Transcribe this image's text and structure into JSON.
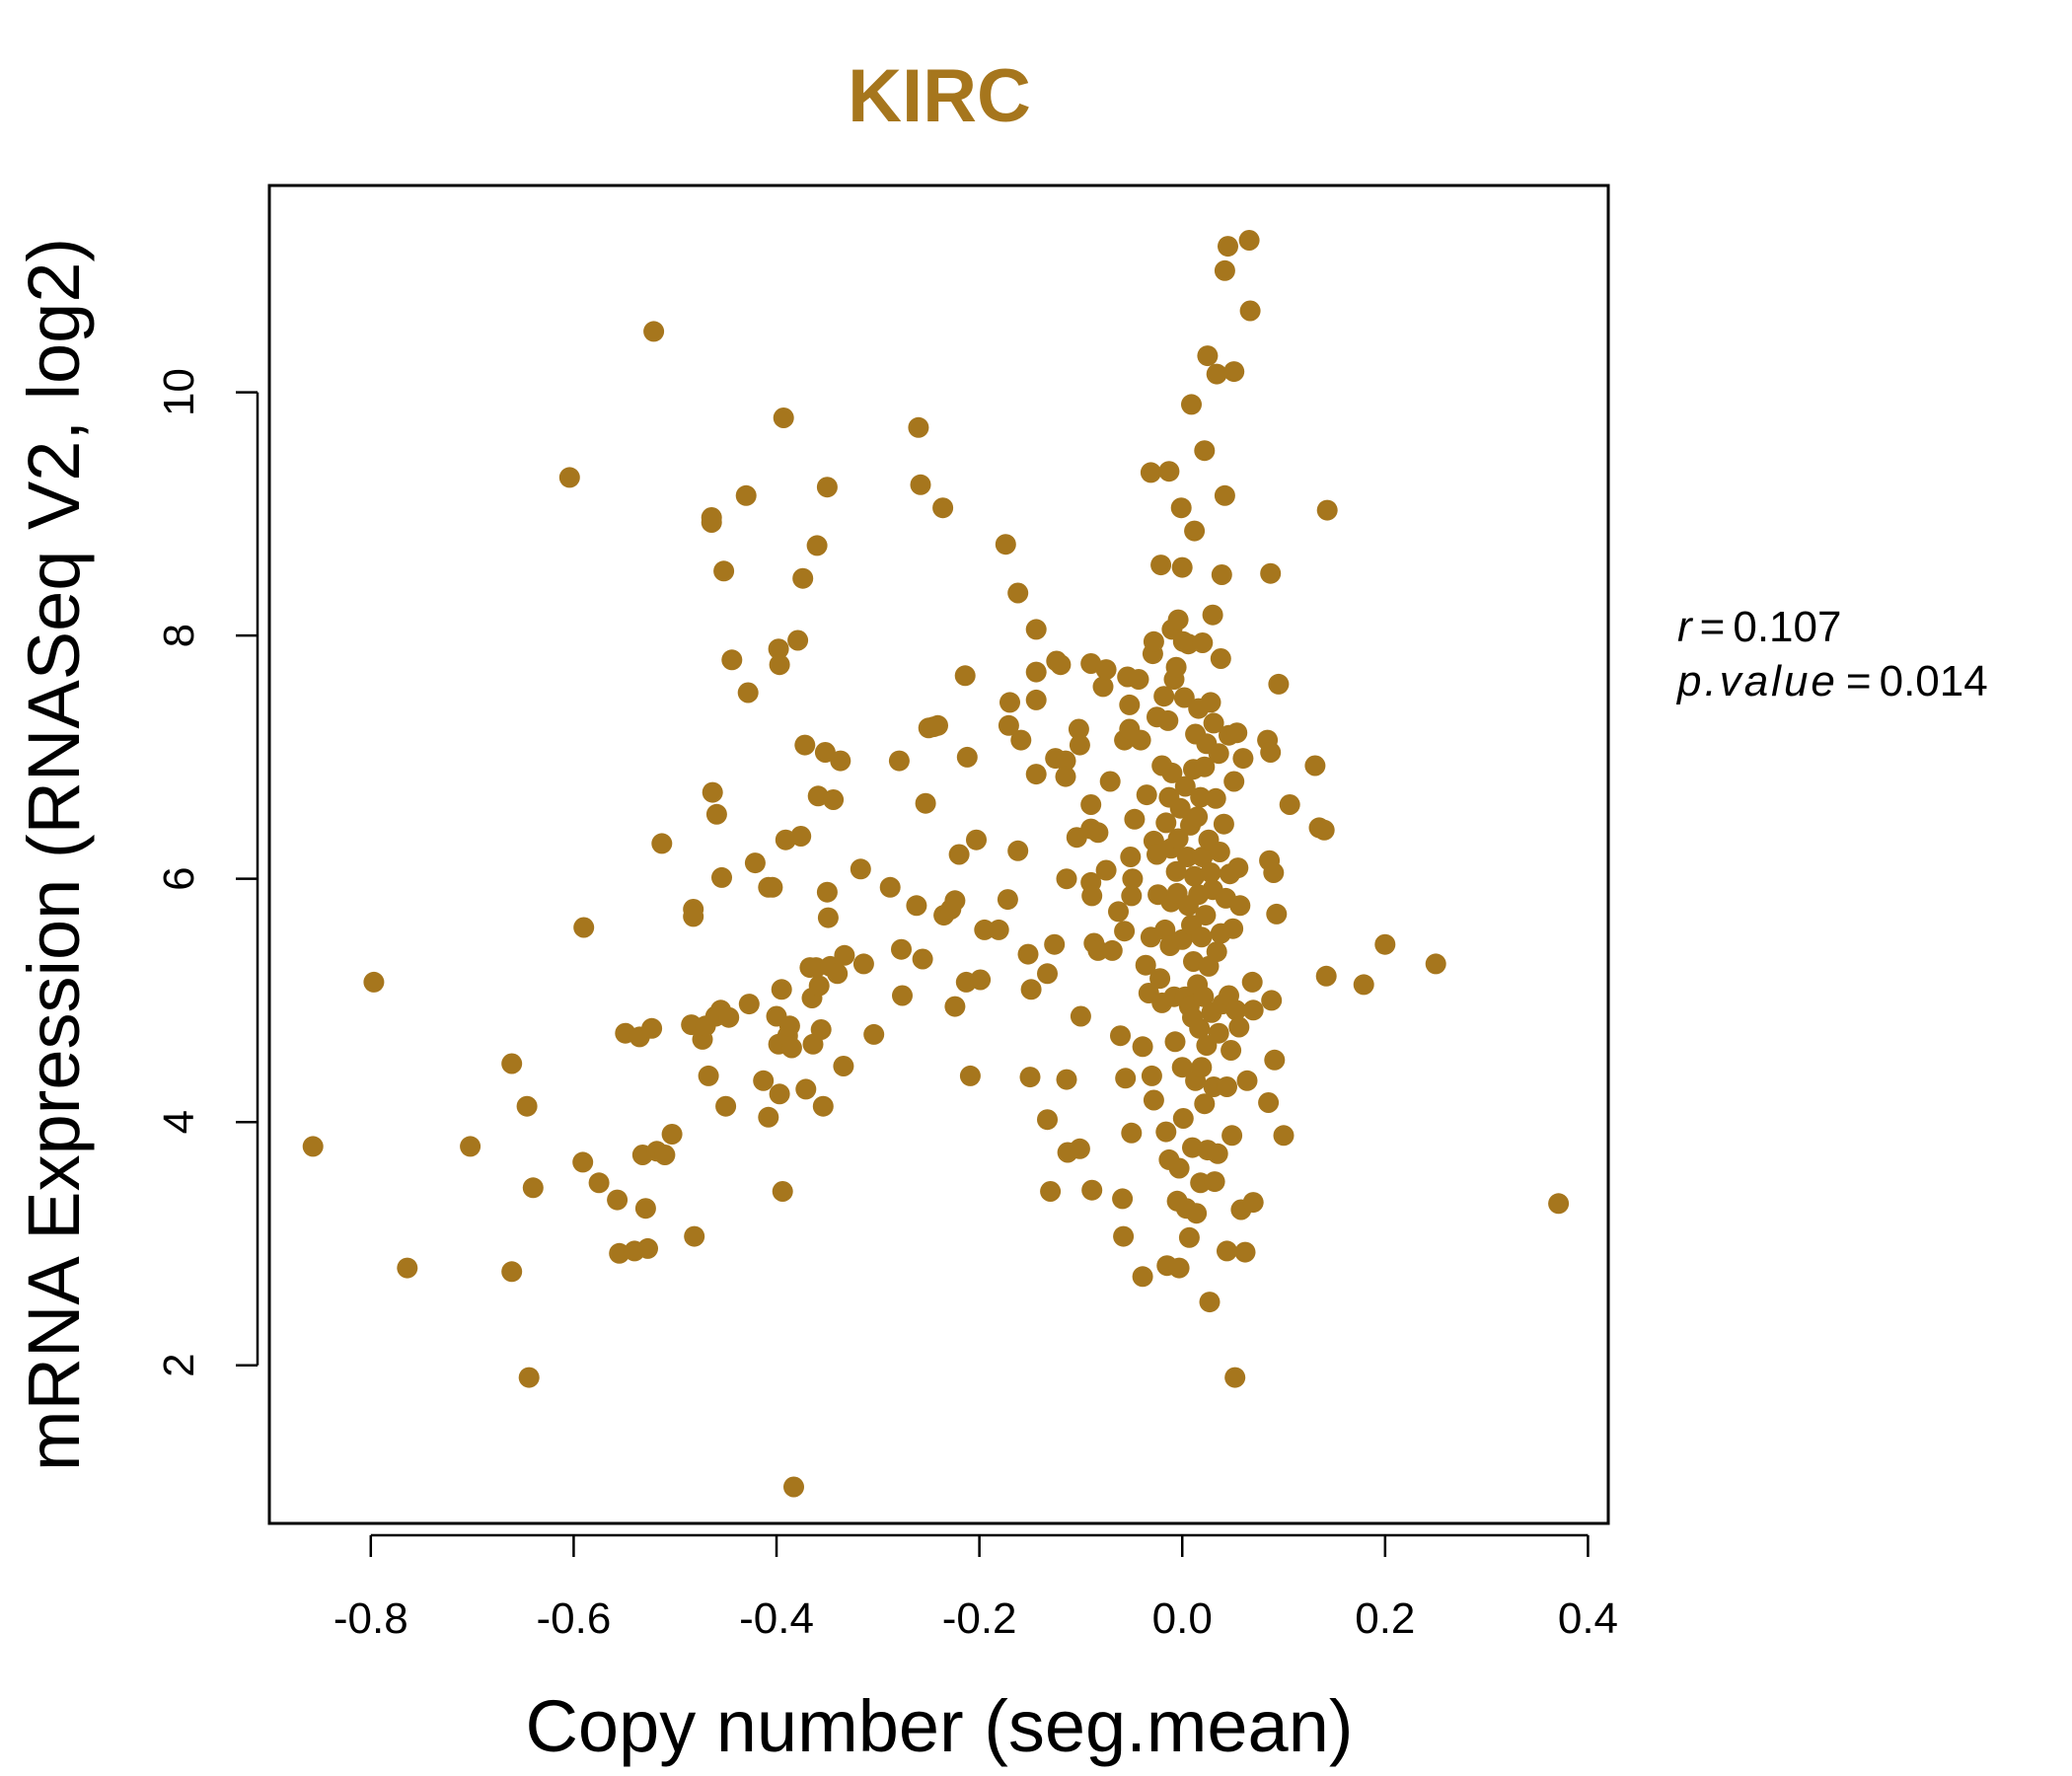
{
  "chart_data": {
    "type": "scatter",
    "title": "KIRC",
    "xlabel": "Copy number (seg.mean)",
    "ylabel": "mRNA Expression (RNASeq V2, log2)",
    "xlim": [
      -0.9,
      0.42
    ],
    "ylim": [
      0.7,
      11.7
    ],
    "x_ticks": [
      -0.8,
      -0.6,
      -0.4,
      -0.2,
      0.0,
      0.2,
      0.4
    ],
    "x_tick_labels": [
      "-0.8",
      "-0.6",
      "-0.4",
      "-0.2",
      "0.0",
      "0.2",
      "0.4"
    ],
    "y_ticks": [
      2,
      4,
      6,
      8,
      10
    ],
    "y_tick_labels": [
      "2",
      "4",
      "6",
      "8",
      "10"
    ],
    "grid": false,
    "legend": "none",
    "stats": {
      "r_label": "r",
      "r_value": "0.107",
      "p_label": "p.value",
      "p_value": "0.014",
      "equals": "="
    },
    "colors": {
      "point": "#A6761D",
      "title": "#A6761D",
      "axis": "#000000"
    },
    "points": [
      [
        -0.857,
        3.8
      ],
      [
        -0.797,
        5.15
      ],
      [
        -0.764,
        2.8
      ],
      [
        -0.702,
        3.8
      ],
      [
        -0.661,
        4.48
      ],
      [
        -0.661,
        2.77
      ],
      [
        -0.646,
        4.13
      ],
      [
        -0.644,
        1.9
      ],
      [
        -0.64,
        3.46
      ],
      [
        -0.604,
        9.3
      ],
      [
        -0.59,
        5.6
      ],
      [
        -0.591,
        3.67
      ],
      [
        -0.575,
        3.5
      ],
      [
        -0.557,
        3.36
      ],
      [
        -0.555,
        2.92
      ],
      [
        -0.549,
        4.73
      ],
      [
        -0.54,
        2.94
      ],
      [
        -0.535,
        4.7
      ],
      [
        -0.532,
        3.73
      ],
      [
        -0.529,
        3.29
      ],
      [
        -0.527,
        2.96
      ],
      [
        -0.523,
        4.77
      ],
      [
        -0.521,
        10.5
      ],
      [
        -0.518,
        3.76
      ],
      [
        -0.513,
        6.29
      ],
      [
        -0.51,
        3.73
      ],
      [
        -0.503,
        3.9
      ],
      [
        -0.484,
        4.8
      ],
      [
        -0.482,
        5.75
      ],
      [
        -0.482,
        5.69
      ],
      [
        -0.481,
        3.06
      ],
      [
        -0.473,
        4.68
      ],
      [
        -0.47,
        4.79
      ],
      [
        -0.467,
        4.38
      ],
      [
        -0.464,
        8.97
      ],
      [
        -0.464,
        8.93
      ],
      [
        -0.463,
        6.71
      ],
      [
        -0.46,
        4.87
      ],
      [
        -0.459,
        6.53
      ],
      [
        -0.455,
        4.92
      ],
      [
        -0.454,
        6.01
      ],
      [
        -0.452,
        8.53
      ],
      [
        -0.45,
        4.13
      ],
      [
        -0.447,
        4.86
      ],
      [
        -0.444,
        7.8
      ],
      [
        -0.43,
        9.15
      ],
      [
        -0.428,
        7.53
      ],
      [
        -0.427,
        4.97
      ],
      [
        -0.421,
        6.13
      ],
      [
        -0.413,
        4.34
      ],
      [
        -0.408,
        5.93
      ],
      [
        -0.408,
        4.04
      ],
      [
        -0.404,
        5.93
      ],
      [
        -0.4,
        4.87
      ],
      [
        -0.398,
        7.89
      ],
      [
        -0.397,
        7.76
      ],
      [
        -0.398,
        4.64
      ],
      [
        -0.397,
        4.23
      ],
      [
        -0.395,
        5.09
      ],
      [
        -0.394,
        3.43
      ],
      [
        -0.393,
        9.79
      ],
      [
        -0.391,
        6.32
      ],
      [
        -0.389,
        4.71
      ],
      [
        -0.387,
        4.79
      ],
      [
        -0.385,
        4.61
      ],
      [
        -0.383,
        1.0
      ],
      [
        -0.379,
        7.96
      ],
      [
        -0.376,
        6.35
      ],
      [
        -0.374,
        8.47
      ],
      [
        -0.372,
        7.1
      ],
      [
        -0.371,
        4.27
      ],
      [
        -0.367,
        5.27
      ],
      [
        -0.365,
        5.02
      ],
      [
        -0.364,
        4.64
      ],
      [
        -0.361,
        5.27
      ],
      [
        -0.36,
        8.74
      ],
      [
        -0.359,
        6.68
      ],
      [
        -0.358,
        5.12
      ],
      [
        -0.356,
        4.76
      ],
      [
        -0.354,
        4.13
      ],
      [
        -0.352,
        7.04
      ],
      [
        -0.35,
        9.22
      ],
      [
        -0.35,
        5.89
      ],
      [
        -0.349,
        5.68
      ],
      [
        -0.347,
        5.28
      ],
      [
        -0.344,
        6.65
      ],
      [
        -0.34,
        5.22
      ],
      [
        -0.337,
        6.97
      ],
      [
        -0.334,
        4.46
      ],
      [
        -0.333,
        5.37
      ],
      [
        -0.317,
        6.08
      ],
      [
        -0.314,
        5.3
      ],
      [
        -0.304,
        4.72
      ],
      [
        -0.288,
        5.93
      ],
      [
        -0.279,
        6.97
      ],
      [
        -0.277,
        5.42
      ],
      [
        -0.276,
        5.04
      ],
      [
        -0.262,
        5.78
      ],
      [
        -0.26,
        9.71
      ],
      [
        -0.258,
        9.24
      ],
      [
        -0.256,
        5.34
      ],
      [
        -0.253,
        6.62
      ],
      [
        -0.25,
        7.24
      ],
      [
        -0.245,
        7.25
      ],
      [
        -0.241,
        7.26
      ],
      [
        -0.236,
        9.05
      ],
      [
        -0.235,
        5.7
      ],
      [
        -0.228,
        5.75
      ],
      [
        -0.224,
        5.82
      ],
      [
        -0.224,
        4.95
      ],
      [
        -0.22,
        6.2
      ],
      [
        -0.214,
        7.67
      ],
      [
        -0.212,
        7.0
      ],
      [
        -0.213,
        5.15
      ],
      [
        -0.209,
        4.38
      ],
      [
        -0.203,
        6.32
      ],
      [
        -0.199,
        5.17
      ],
      [
        -0.195,
        5.58
      ],
      [
        -0.181,
        5.58
      ],
      [
        -0.174,
        8.75
      ],
      [
        -0.171,
        7.26
      ],
      [
        -0.17,
        7.45
      ],
      [
        -0.172,
        5.83
      ],
      [
        -0.162,
        8.35
      ],
      [
        -0.162,
        6.23
      ],
      [
        -0.159,
        7.14
      ],
      [
        -0.152,
        5.38
      ],
      [
        -0.15,
        4.37
      ],
      [
        -0.149,
        5.09
      ],
      [
        -0.144,
        8.05
      ],
      [
        -0.144,
        7.7
      ],
      [
        -0.144,
        7.47
      ],
      [
        -0.144,
        6.86
      ],
      [
        -0.133,
        5.22
      ],
      [
        -0.133,
        4.02
      ],
      [
        -0.13,
        3.43
      ],
      [
        -0.126,
        5.46
      ],
      [
        -0.125,
        6.99
      ],
      [
        -0.124,
        7.79
      ],
      [
        -0.12,
        7.76
      ],
      [
        -0.115,
        6.97
      ],
      [
        -0.115,
        6.84
      ],
      [
        -0.113,
        3.75
      ],
      [
        -0.114,
        4.35
      ],
      [
        -0.114,
        6.0
      ],
      [
        -0.104,
        6.34
      ],
      [
        -0.102,
        7.23
      ],
      [
        -0.101,
        7.1
      ],
      [
        -0.101,
        3.78
      ],
      [
        -0.1,
        4.87
      ],
      [
        -0.09,
        7.77
      ],
      [
        -0.09,
        6.61
      ],
      [
        -0.09,
        6.41
      ],
      [
        -0.09,
        5.97
      ],
      [
        -0.089,
        5.86
      ],
      [
        -0.089,
        3.44
      ],
      [
        -0.087,
        5.47
      ],
      [
        -0.083,
        6.38
      ],
      [
        -0.083,
        5.41
      ],
      [
        -0.078,
        7.58
      ],
      [
        -0.075,
        7.72
      ],
      [
        -0.075,
        6.07
      ],
      [
        -0.071,
        6.8
      ],
      [
        -0.069,
        5.41
      ],
      [
        -0.063,
        5.73
      ],
      [
        -0.061,
        4.71
      ],
      [
        -0.059,
        3.37
      ],
      [
        -0.058,
        3.06
      ],
      [
        -0.057,
        7.14
      ],
      [
        -0.057,
        5.57
      ],
      [
        -0.056,
        4.36
      ],
      [
        -0.054,
        7.66
      ],
      [
        -0.052,
        7.43
      ],
      [
        -0.052,
        7.23
      ],
      [
        -0.051,
        6.18
      ],
      [
        -0.05,
        5.86
      ],
      [
        -0.05,
        3.91
      ],
      [
        -0.049,
        6.0
      ],
      [
        -0.047,
        6.49
      ],
      [
        -0.043,
        7.64
      ],
      [
        -0.041,
        7.14
      ],
      [
        -0.039,
        4.62
      ],
      [
        -0.039,
        2.73
      ],
      [
        -0.036,
        5.29
      ],
      [
        -0.035,
        6.69
      ],
      [
        -0.033,
        5.06
      ],
      [
        -0.031,
        9.34
      ],
      [
        -0.031,
        5.52
      ],
      [
        -0.03,
        4.38
      ],
      [
        -0.029,
        7.85
      ],
      [
        -0.028,
        7.95
      ],
      [
        -0.028,
        6.31
      ],
      [
        -0.028,
        4.18
      ],
      [
        -0.025,
        7.33
      ],
      [
        -0.025,
        6.2
      ],
      [
        -0.024,
        5.87
      ],
      [
        -0.022,
        5.18
      ],
      [
        -0.021,
        8.58
      ],
      [
        -0.02,
        6.93
      ],
      [
        -0.02,
        4.98
      ],
      [
        -0.018,
        7.5
      ],
      [
        -0.017,
        5.58
      ],
      [
        -0.016,
        6.46
      ],
      [
        -0.016,
        3.92
      ],
      [
        -0.015,
        2.82
      ],
      [
        -0.014,
        7.3
      ],
      [
        -0.013,
        9.35
      ],
      [
        -0.013,
        6.67
      ],
      [
        -0.013,
        3.69
      ],
      [
        -0.012,
        5.45
      ],
      [
        -0.011,
        6.25
      ],
      [
        -0.011,
        5.81
      ],
      [
        -0.01,
        8.05
      ],
      [
        -0.01,
        6.87
      ],
      [
        -0.008,
        7.64
      ],
      [
        -0.008,
        5.03
      ],
      [
        -0.007,
        4.66
      ],
      [
        -0.006,
        7.74
      ],
      [
        -0.006,
        6.06
      ],
      [
        -0.005,
        5.88
      ],
      [
        -0.005,
        3.35
      ],
      [
        -0.004,
        8.13
      ],
      [
        -0.004,
        6.33
      ],
      [
        -0.003,
        3.62
      ],
      [
        -0.003,
        2.8
      ],
      [
        -0.002,
        6.58
      ],
      [
        -0.001,
        9.05
      ],
      [
        0.0,
        8.56
      ],
      [
        0.0,
        5.5
      ],
      [
        0.0,
        4.45
      ],
      [
        0.001,
        7.95
      ],
      [
        0.001,
        4.03
      ],
      [
        0.002,
        7.49
      ],
      [
        0.003,
        6.76
      ],
      [
        0.003,
        5.03
      ],
      [
        0.004,
        3.29
      ],
      [
        0.005,
        6.18
      ],
      [
        0.006,
        7.93
      ],
      [
        0.006,
        5.78
      ],
      [
        0.007,
        3.05
      ],
      [
        0.007,
        4.95
      ],
      [
        0.008,
        6.44
      ],
      [
        0.009,
        9.9
      ],
      [
        0.009,
        5.62
      ],
      [
        0.01,
        4.86
      ],
      [
        0.01,
        3.79
      ],
      [
        0.011,
        6.9
      ],
      [
        0.011,
        5.32
      ],
      [
        0.012,
        8.86
      ],
      [
        0.012,
        6.02
      ],
      [
        0.013,
        7.19
      ],
      [
        0.013,
        4.34
      ],
      [
        0.014,
        3.25
      ],
      [
        0.015,
        6.51
      ],
      [
        0.015,
        5.13
      ],
      [
        0.016,
        7.4
      ],
      [
        0.016,
        5.87
      ],
      [
        0.017,
        4.77
      ],
      [
        0.018,
        6.67
      ],
      [
        0.018,
        3.5
      ],
      [
        0.019,
        5.52
      ],
      [
        0.019,
        4.45
      ],
      [
        0.02,
        7.94
      ],
      [
        0.02,
        6.18
      ],
      [
        0.021,
        5.03
      ],
      [
        0.022,
        9.52
      ],
      [
        0.022,
        4.15
      ],
      [
        0.022,
        6.92
      ],
      [
        0.023,
        5.7
      ],
      [
        0.024,
        7.11
      ],
      [
        0.024,
        4.63
      ],
      [
        0.025,
        10.3
      ],
      [
        0.025,
        3.77
      ],
      [
        0.026,
        6.32
      ],
      [
        0.026,
        5.28
      ],
      [
        0.027,
        2.52
      ],
      [
        0.028,
        7.45
      ],
      [
        0.028,
        6.05
      ],
      [
        0.029,
        4.9
      ],
      [
        0.03,
        8.17
      ],
      [
        0.03,
        5.91
      ],
      [
        0.031,
        7.28
      ],
      [
        0.031,
        4.29
      ],
      [
        0.032,
        3.51
      ],
      [
        0.033,
        6.66
      ],
      [
        0.034,
        10.15
      ],
      [
        0.034,
        5.4
      ],
      [
        0.035,
        3.74
      ],
      [
        0.036,
        7.03
      ],
      [
        0.036,
        4.73
      ],
      [
        0.037,
        6.22
      ],
      [
        0.038,
        7.81
      ],
      [
        0.038,
        5.55
      ],
      [
        0.039,
        8.5
      ],
      [
        0.04,
        4.97
      ],
      [
        0.041,
        6.45
      ],
      [
        0.042,
        11.0
      ],
      [
        0.042,
        9.15
      ],
      [
        0.043,
        5.84
      ],
      [
        0.044,
        4.29
      ],
      [
        0.044,
        2.94
      ],
      [
        0.045,
        11.2
      ],
      [
        0.046,
        7.18
      ],
      [
        0.046,
        5.04
      ],
      [
        0.047,
        6.04
      ],
      [
        0.048,
        4.59
      ],
      [
        0.049,
        3.89
      ],
      [
        0.05,
        5.59
      ],
      [
        0.051,
        10.17
      ],
      [
        0.051,
        6.8
      ],
      [
        0.052,
        1.9
      ],
      [
        0.053,
        4.92
      ],
      [
        0.054,
        7.2
      ],
      [
        0.055,
        6.09
      ],
      [
        0.056,
        4.78
      ],
      [
        0.057,
        5.78
      ],
      [
        0.058,
        3.28
      ],
      [
        0.06,
        6.99
      ],
      [
        0.062,
        2.93
      ],
      [
        0.064,
        4.34
      ],
      [
        0.066,
        11.25
      ],
      [
        0.067,
        10.67
      ],
      [
        0.069,
        5.15
      ],
      [
        0.07,
        3.34
      ],
      [
        0.07,
        4.92
      ],
      [
        0.084,
        7.14
      ],
      [
        0.085,
        4.16
      ],
      [
        0.086,
        6.15
      ],
      [
        0.087,
        8.51
      ],
      [
        0.087,
        7.04
      ],
      [
        0.088,
        5.0
      ],
      [
        0.09,
        6.05
      ],
      [
        0.091,
        4.51
      ],
      [
        0.093,
        5.71
      ],
      [
        0.095,
        7.6
      ],
      [
        0.1,
        3.89
      ],
      [
        0.106,
        6.61
      ],
      [
        0.131,
        6.93
      ],
      [
        0.135,
        6.42
      ],
      [
        0.14,
        6.4
      ],
      [
        0.142,
        5.2
      ],
      [
        0.143,
        9.03
      ],
      [
        0.179,
        5.13
      ],
      [
        0.2,
        5.46
      ],
      [
        0.25,
        5.3
      ],
      [
        0.371,
        3.33
      ]
    ]
  }
}
